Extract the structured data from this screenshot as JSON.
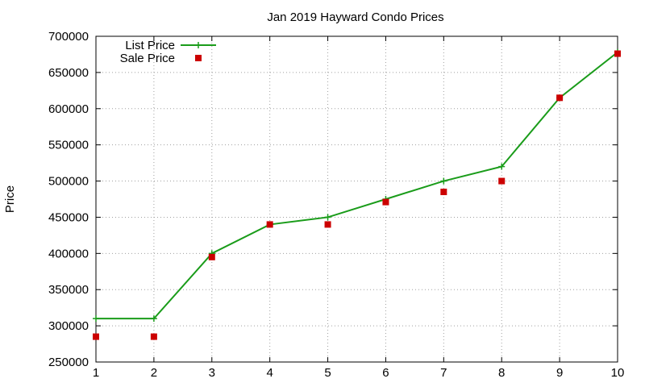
{
  "chart_data": {
    "type": "line",
    "title": "Jan 2019 Hayward Condo Prices",
    "xlabel": "",
    "ylabel": "Price",
    "xlim": [
      1,
      10
    ],
    "ylim": [
      250000,
      700000
    ],
    "x": [
      1,
      2,
      3,
      4,
      5,
      6,
      7,
      8,
      9,
      10
    ],
    "x_ticks": [
      "1",
      "2",
      "3",
      "4",
      "5",
      "6",
      "7",
      "8",
      "9",
      "10"
    ],
    "y_ticks": [
      "250000",
      "300000",
      "350000",
      "400000",
      "450000",
      "500000",
      "550000",
      "600000",
      "650000",
      "700000"
    ],
    "y_tick_values": [
      250000,
      300000,
      350000,
      400000,
      450000,
      500000,
      550000,
      600000,
      650000,
      700000
    ],
    "grid": true,
    "legend_position": "top-left",
    "series": [
      {
        "name": "List Price",
        "style": "linespoints",
        "marker": "cross",
        "color": "#1a9c1a",
        "values": [
          310000,
          310000,
          400000,
          440000,
          450000,
          475000,
          500000,
          520000,
          615000,
          678000
        ]
      },
      {
        "name": "Sale Price",
        "style": "points",
        "marker": "square",
        "color": "#cc0000",
        "values": [
          285000,
          285000,
          395000,
          440000,
          440000,
          471000,
          485000,
          500000,
          615000,
          676000
        ]
      }
    ]
  }
}
